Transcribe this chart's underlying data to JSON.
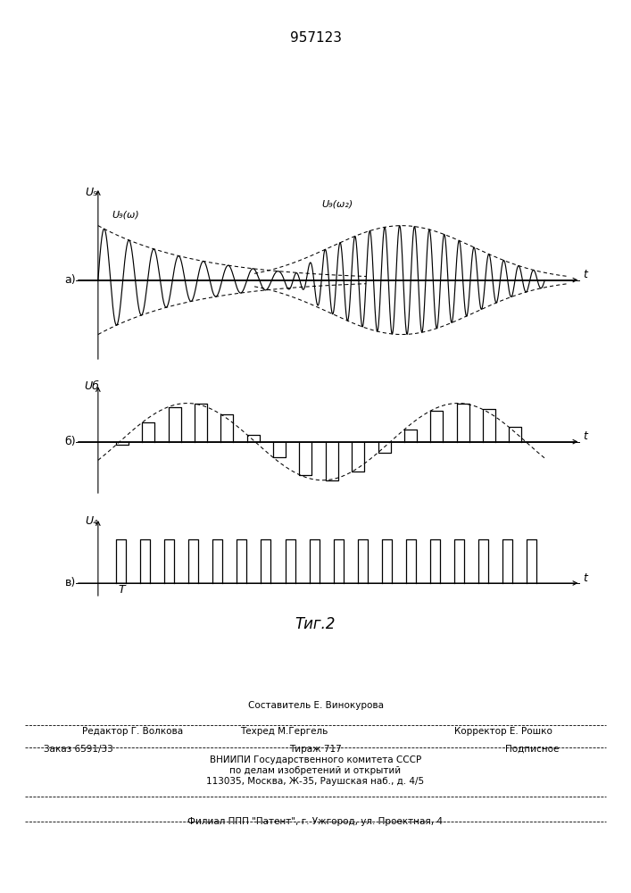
{
  "title": "957123",
  "fig_caption": "Τиг.2",
  "background_color": "#ffffff",
  "line_color": "#000000",
  "label_a": "а)",
  "label_b": "б)",
  "label_v": "в)",
  "ylabel_a": "U₉",
  "ylabel_b": "Uб",
  "ylabel_v": "U₄",
  "xlabel": "t",
  "label_Ug_w1": "U₉(ω)",
  "label_Ug_w2": "U₉(ω₂)",
  "label_T": "T",
  "footer_sestavitel": "Составитель Е. Винокурова",
  "footer_redaktor": "Редактор Г. Волкова",
  "footer_tehred": "Техред М.Гергель",
  "footer_korrektor": "Корректор Е. Рошко",
  "footer_zakaz": "Заказ 6591/33",
  "footer_tirazh": "Тираж 717",
  "footer_podpisnoe": "Подписное",
  "footer_vniip": "ВНИИПИ Государственного комитета СССР",
  "footer_po_delam": "по делам изобретений и открытий",
  "footer_addr": "113035, Москва, Ж-35, Раушская наб., д. 4/5",
  "footer_filial": "Филиал ППП \"Патент\", г. Ужгород, ул. Проектная, 4"
}
